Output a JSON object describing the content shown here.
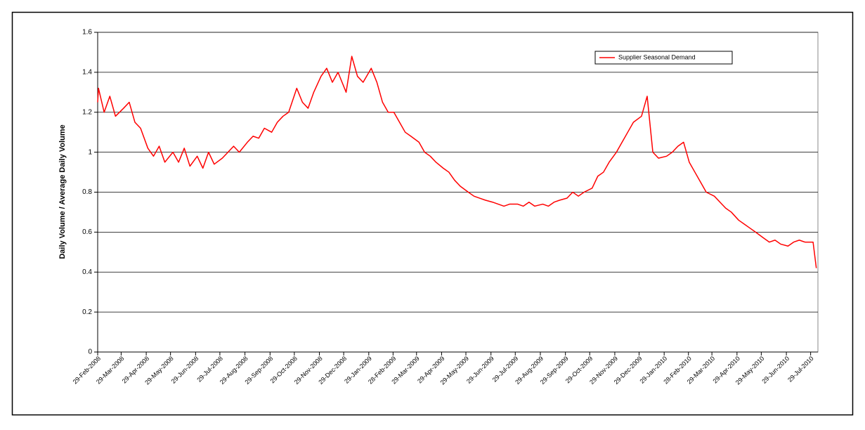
{
  "chart_data": {
    "type": "line",
    "y_label": "Daily Volume / Average Daily Volume",
    "x": [
      "2008-02-29",
      "2008-03-01",
      "2008-03-08",
      "2008-03-15",
      "2008-03-22",
      "2008-04-01",
      "2008-04-08",
      "2008-04-15",
      "2008-04-22",
      "2008-05-01",
      "2008-05-08",
      "2008-05-15",
      "2008-05-22",
      "2008-06-01",
      "2008-06-08",
      "2008-06-15",
      "2008-06-22",
      "2008-07-01",
      "2008-07-08",
      "2008-07-15",
      "2008-07-22",
      "2008-08-01",
      "2008-08-08",
      "2008-08-15",
      "2008-08-22",
      "2008-09-01",
      "2008-09-08",
      "2008-09-15",
      "2008-09-22",
      "2008-10-01",
      "2008-10-08",
      "2008-10-15",
      "2008-10-22",
      "2008-11-01",
      "2008-11-08",
      "2008-11-15",
      "2008-11-22",
      "2008-12-01",
      "2008-12-08",
      "2008-12-15",
      "2008-12-22",
      "2009-01-01",
      "2009-01-08",
      "2009-01-15",
      "2009-01-22",
      "2009-02-01",
      "2009-02-08",
      "2009-02-15",
      "2009-02-22",
      "2009-03-01",
      "2009-03-08",
      "2009-03-15",
      "2009-03-22",
      "2009-04-01",
      "2009-04-08",
      "2009-04-15",
      "2009-04-22",
      "2009-05-01",
      "2009-05-08",
      "2009-05-15",
      "2009-05-22",
      "2009-06-01",
      "2009-06-08",
      "2009-06-15",
      "2009-06-22",
      "2009-07-01",
      "2009-07-08",
      "2009-07-15",
      "2009-07-22",
      "2009-08-01",
      "2009-08-08",
      "2009-08-15",
      "2009-08-22",
      "2009-09-01",
      "2009-09-08",
      "2009-09-15",
      "2009-09-22",
      "2009-10-01",
      "2009-10-08",
      "2009-10-15",
      "2009-10-22",
      "2009-11-01",
      "2009-11-08",
      "2009-11-15",
      "2009-11-22",
      "2009-12-01",
      "2009-12-08",
      "2009-12-15",
      "2009-12-22",
      "2010-01-01",
      "2010-01-08",
      "2010-01-15",
      "2010-01-22",
      "2010-02-01",
      "2010-02-08",
      "2010-02-15",
      "2010-02-22",
      "2010-03-01",
      "2010-03-08",
      "2010-03-15",
      "2010-03-22",
      "2010-04-01",
      "2010-04-08",
      "2010-04-15",
      "2010-04-22",
      "2010-05-01",
      "2010-05-08",
      "2010-05-15",
      "2010-05-22",
      "2010-06-01",
      "2010-06-08",
      "2010-06-15",
      "2010-06-22",
      "2010-07-01",
      "2010-07-08",
      "2010-07-15",
      "2010-07-22",
      "2010-08-01",
      "2010-08-05"
    ],
    "series": [
      {
        "name": "Supplier Seasonal Demand",
        "color": "#ff0000",
        "values": [
          1.25,
          1.32,
          1.2,
          1.28,
          1.18,
          1.22,
          1.25,
          1.15,
          1.12,
          1.02,
          0.98,
          1.03,
          0.95,
          1.0,
          0.95,
          1.02,
          0.93,
          0.98,
          0.92,
          1.0,
          0.94,
          0.97,
          1.0,
          1.03,
          1.0,
          1.05,
          1.08,
          1.07,
          1.12,
          1.1,
          1.15,
          1.18,
          1.2,
          1.32,
          1.25,
          1.22,
          1.3,
          1.38,
          1.42,
          1.35,
          1.4,
          1.3,
          1.48,
          1.38,
          1.35,
          1.42,
          1.35,
          1.25,
          1.2,
          1.2,
          1.15,
          1.1,
          1.08,
          1.05,
          1.0,
          0.98,
          0.95,
          0.92,
          0.9,
          0.86,
          0.83,
          0.8,
          0.78,
          0.77,
          0.76,
          0.75,
          0.74,
          0.73,
          0.74,
          0.74,
          0.73,
          0.75,
          0.73,
          0.74,
          0.73,
          0.75,
          0.76,
          0.77,
          0.8,
          0.78,
          0.8,
          0.82,
          0.88,
          0.9,
          0.95,
          1.0,
          1.05,
          1.1,
          1.15,
          1.18,
          1.28,
          1.0,
          0.97,
          0.98,
          1.0,
          1.03,
          1.05,
          0.95,
          0.9,
          0.85,
          0.8,
          0.78,
          0.75,
          0.72,
          0.7,
          0.66,
          0.64,
          0.62,
          0.6,
          0.57,
          0.55,
          0.56,
          0.54,
          0.53,
          0.55,
          0.56,
          0.55,
          0.55,
          0.42
        ]
      }
    ],
    "xlim": [
      "2008-02-29",
      "2010-08-07"
    ],
    "xticks": [
      {
        "value": "2008-02-29",
        "label": "29-Feb-2008"
      },
      {
        "value": "2008-03-29",
        "label": "29-Mar-2008"
      },
      {
        "value": "2008-04-29",
        "label": "29-Apr-2008"
      },
      {
        "value": "2008-05-29",
        "label": "29-May-2008"
      },
      {
        "value": "2008-06-29",
        "label": "29-Jun-2008"
      },
      {
        "value": "2008-07-29",
        "label": "29-Jul-2008"
      },
      {
        "value": "2008-08-29",
        "label": "29-Aug-2008"
      },
      {
        "value": "2008-09-29",
        "label": "29-Sep-2008"
      },
      {
        "value": "2008-10-29",
        "label": "29-Oct-2008"
      },
      {
        "value": "2008-11-29",
        "label": "29-Nov-2008"
      },
      {
        "value": "2008-12-29",
        "label": "29-Dec-2008"
      },
      {
        "value": "2009-01-29",
        "label": "29-Jan-2009"
      },
      {
        "value": "2009-02-28",
        "label": "28-Feb-2009"
      },
      {
        "value": "2009-03-29",
        "label": "29-Mar-2009"
      },
      {
        "value": "2009-04-29",
        "label": "29-Apr-2009"
      },
      {
        "value": "2009-05-29",
        "label": "29-May-2009"
      },
      {
        "value": "2009-06-29",
        "label": "29-Jun-2009"
      },
      {
        "value": "2009-07-29",
        "label": "29-Jul-2009"
      },
      {
        "value": "2009-08-29",
        "label": "29-Aug-2009"
      },
      {
        "value": "2009-09-29",
        "label": "29-Sep-2009"
      },
      {
        "value": "2009-10-29",
        "label": "29-Oct-2009"
      },
      {
        "value": "2009-11-29",
        "label": "29-Nov-2009"
      },
      {
        "value": "2009-12-29",
        "label": "29-Dec-2009"
      },
      {
        "value": "2010-01-29",
        "label": "29-Jan-2010"
      },
      {
        "value": "2010-02-28",
        "label": "28-Feb-2010"
      },
      {
        "value": "2010-03-29",
        "label": "29-Mar-2010"
      },
      {
        "value": "2010-04-29",
        "label": "29-Apr-2010"
      },
      {
        "value": "2010-05-29",
        "label": "29-May-2010"
      },
      {
        "value": "2010-06-29",
        "label": "29-Jun-2010"
      },
      {
        "value": "2010-07-29",
        "label": "29-Jul-2010"
      }
    ],
    "ylim": [
      0,
      1.6
    ],
    "yticks": [
      0,
      0.2,
      0.4,
      0.6,
      0.8,
      1,
      1.2,
      1.4,
      1.6
    ],
    "grid": true,
    "legend": "top-right"
  }
}
